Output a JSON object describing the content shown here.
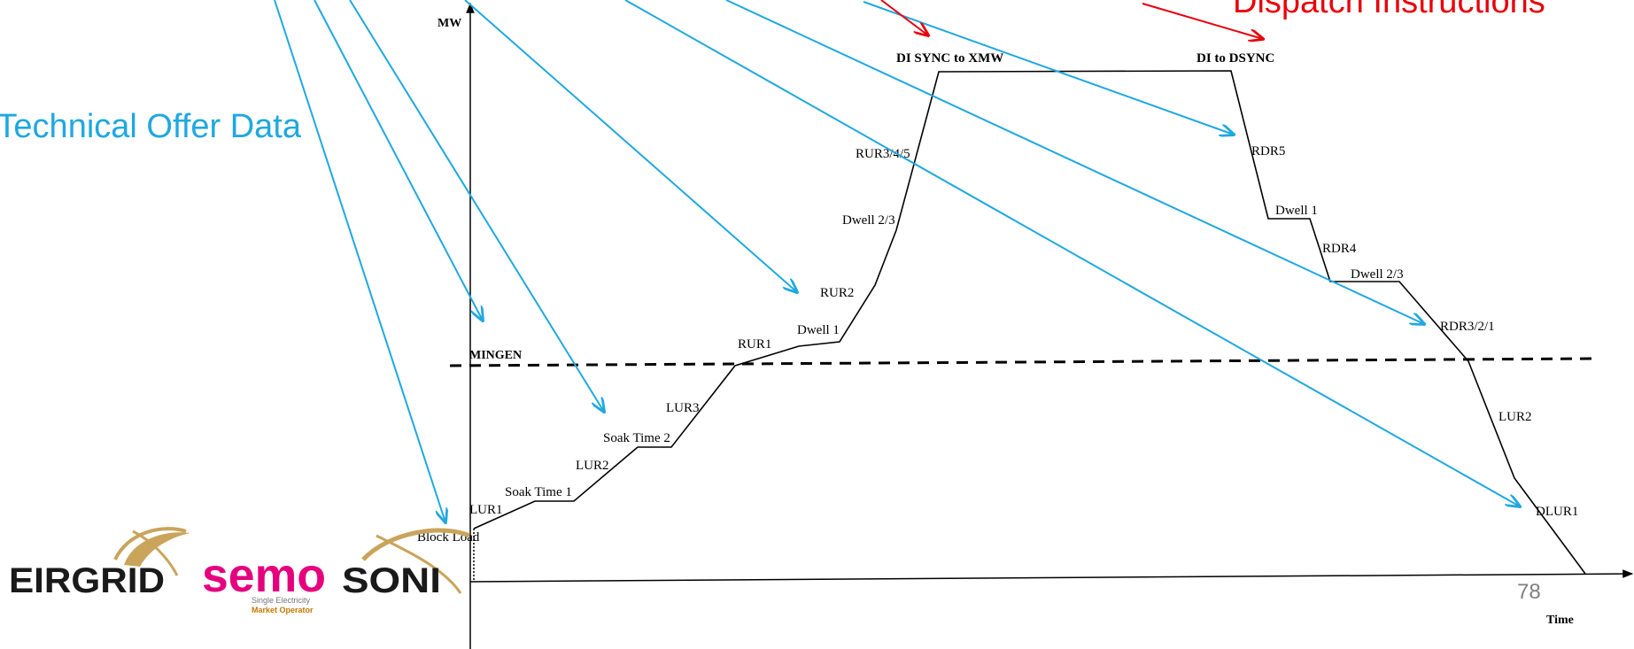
{
  "axes": {
    "y_label": "MW",
    "x_label": "Time",
    "mingen_label": "MINGEN"
  },
  "callouts": {
    "left": "Technical Offer Data",
    "right": "Dispatch Instructions"
  },
  "slide_number": "78",
  "curve_labels": {
    "block_load": "Block Load",
    "lur1": "LUR1",
    "soak_time_1": "Soak Time 1",
    "lur2": "LUR2",
    "soak_time_2": "Soak Time 2",
    "lur3": "LUR3",
    "rur1": "RUR1",
    "dwell_1_up": "Dwell 1",
    "rur2": "RUR2",
    "dwell_23_up": "Dwell 2/3",
    "rur345": "RUR3/4/5",
    "di_sync": "DI SYNC to XMW",
    "di_to_dsync": "DI to DSYNC",
    "rdr5": "RDR5",
    "dwell_1_down": "Dwell 1",
    "rdr4": "RDR4",
    "dwell_23_down": "Dwell 2/3",
    "rdr321": "RDR3/2/1",
    "lur2_down": "LUR2",
    "dlur1": "DLUR1"
  },
  "logos": {
    "eirgrid": "EIRGRID",
    "semo": "semo",
    "semo_sub1": "Single Electricity",
    "semo_sub2": "Market Operator",
    "soni": "SONI"
  },
  "colors": {
    "callout_blue": "#1FA8E0",
    "callout_red": "#E8000B",
    "semo_pink": "#E5007E",
    "logo_gold": "#C9A45A"
  }
}
